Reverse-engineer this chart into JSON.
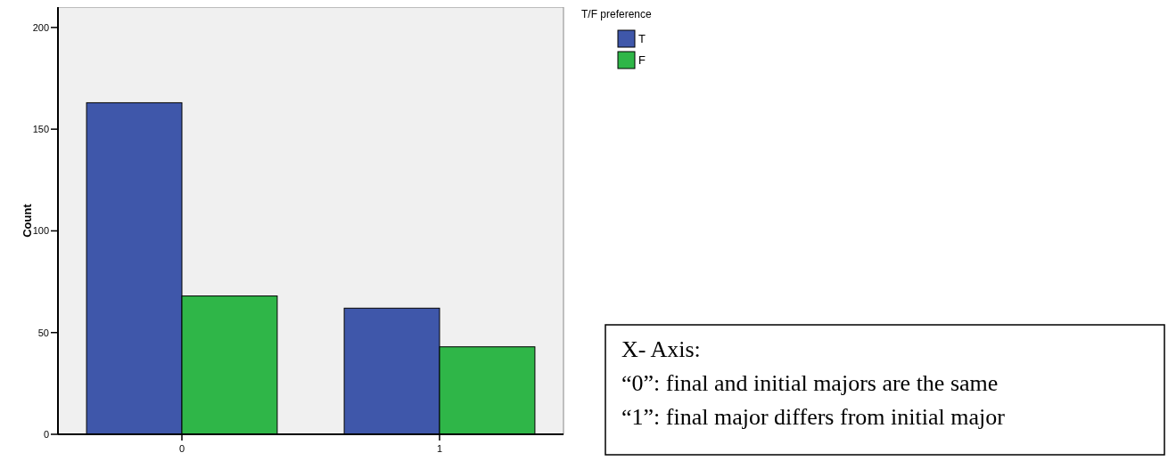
{
  "chart_data": {
    "type": "bar",
    "ylabel": "Count",
    "legend_title": "T/F preference",
    "categories": [
      "0",
      "1"
    ],
    "series": [
      {
        "name": "T",
        "color": "#3f57aa",
        "values": [
          163,
          62
        ]
      },
      {
        "name": "F",
        "color": "#2fb648",
        "values": [
          68,
          43
        ]
      }
    ],
    "ylim": [
      0,
      210
    ],
    "yticks": [
      0,
      50,
      100,
      150,
      200
    ],
    "grid": false,
    "legend": "top right",
    "annotations": [
      "X- Axis:\n“0”: final and initial majors are the same\n“1”: final major differs from initial major"
    ]
  }
}
